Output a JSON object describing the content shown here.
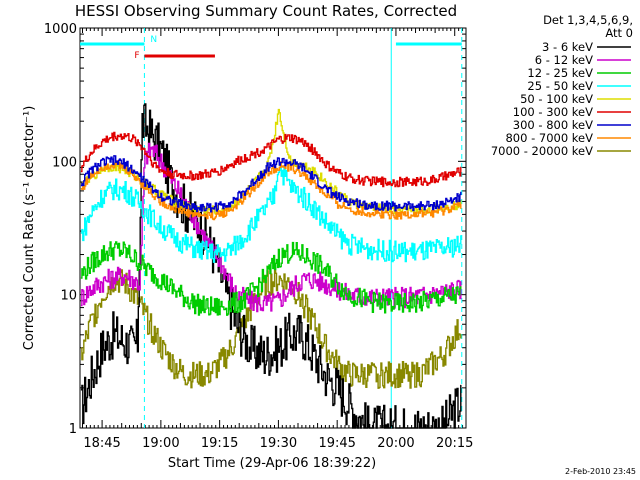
{
  "chart_data": {
    "type": "line",
    "title": "HESSI Observing Summary Count Rates, Corrected",
    "xlabel": "Start Time (29-Apr-06 18:39:22)",
    "ylabel": "Corrected Count Rate (s⁻¹ detector⁻¹)",
    "y_scale": "log",
    "ylim": [
      1,
      1000
    ],
    "xlim": [
      18.656,
      20.298
    ],
    "x_ticks": [
      {
        "value": 18.75,
        "label": "18:45"
      },
      {
        "value": 19.0,
        "label": "19:00"
      },
      {
        "value": 19.25,
        "label": "19:15"
      },
      {
        "value": 19.5,
        "label": "19:30"
      },
      {
        "value": 19.75,
        "label": "19:45"
      },
      {
        "value": 20.0,
        "label": "20:00"
      },
      {
        "value": 20.25,
        "label": "20:15"
      }
    ],
    "y_ticks": [
      {
        "value": 1,
        "label": "1"
      },
      {
        "value": 10,
        "label": "10"
      },
      {
        "value": 100,
        "label": "100"
      },
      {
        "value": 1000,
        "label": "1000"
      }
    ],
    "legend": {
      "position": "right",
      "header": [
        "Det 1,3,4,5,6,9,",
        "Att 0"
      ]
    },
    "series": [
      {
        "name": "3 - 6 keV",
        "color": "#000000",
        "points": [
          [
            18.66,
            1.4
          ],
          [
            18.7,
            2.3
          ],
          [
            18.75,
            4.0
          ],
          [
            18.8,
            5.0
          ],
          [
            18.85,
            4.4
          ],
          [
            18.88,
            4.0
          ],
          [
            18.9,
            4.5
          ],
          [
            18.92,
            195
          ],
          [
            18.95,
            170
          ],
          [
            19.0,
            120
          ],
          [
            19.05,
            65
          ],
          [
            19.1,
            45
          ],
          [
            19.15,
            35
          ],
          [
            19.2,
            26
          ],
          [
            19.25,
            15
          ],
          [
            19.28,
            10
          ],
          [
            19.32,
            6.0
          ],
          [
            19.38,
            4.0
          ],
          [
            19.44,
            3.5
          ],
          [
            19.5,
            4.0
          ],
          [
            19.55,
            5.0
          ],
          [
            19.6,
            5.0
          ],
          [
            19.65,
            3.5
          ],
          [
            19.7,
            2.5
          ],
          [
            19.75,
            2.0
          ],
          [
            19.8,
            1.5
          ],
          [
            19.88,
            1.0
          ],
          [
            19.92,
            1.0
          ],
          [
            20.0,
            1.0
          ],
          [
            20.1,
            1.0
          ],
          [
            20.2,
            1.0
          ],
          [
            20.24,
            1.3
          ],
          [
            20.28,
            1.6
          ]
        ]
      },
      {
        "name": "6 - 12 keV",
        "color": "#cc00cc",
        "points": [
          [
            18.66,
            9.5
          ],
          [
            18.7,
            11
          ],
          [
            18.75,
            12.5
          ],
          [
            18.8,
            13.5
          ],
          [
            18.85,
            14
          ],
          [
            18.88,
            13
          ],
          [
            18.91,
            12
          ],
          [
            18.93,
            105
          ],
          [
            18.96,
            125
          ],
          [
            19.0,
            100
          ],
          [
            19.05,
            70
          ],
          [
            19.1,
            50
          ],
          [
            19.15,
            35
          ],
          [
            19.2,
            24
          ],
          [
            19.25,
            18
          ],
          [
            19.28,
            14
          ],
          [
            19.32,
            10
          ],
          [
            19.38,
            9
          ],
          [
            19.44,
            8.5
          ],
          [
            19.5,
            9
          ],
          [
            19.55,
            11
          ],
          [
            19.6,
            13
          ],
          [
            19.65,
            13
          ],
          [
            19.7,
            12
          ],
          [
            19.75,
            11
          ],
          [
            19.8,
            10
          ],
          [
            19.88,
            9.5
          ],
          [
            20.0,
            9.5
          ],
          [
            20.1,
            9.8
          ],
          [
            20.2,
            10.5
          ],
          [
            20.28,
            11
          ]
        ]
      },
      {
        "name": "12 - 25 keV",
        "color": "#00cc00",
        "points": [
          [
            18.66,
            14
          ],
          [
            18.7,
            17
          ],
          [
            18.75,
            20
          ],
          [
            18.8,
            22
          ],
          [
            18.85,
            21
          ],
          [
            18.9,
            18
          ],
          [
            18.95,
            15
          ],
          [
            19.0,
            13
          ],
          [
            19.05,
            11
          ],
          [
            19.1,
            9.5
          ],
          [
            19.15,
            8.5
          ],
          [
            19.2,
            8
          ],
          [
            19.25,
            8
          ],
          [
            19.3,
            8.5
          ],
          [
            19.35,
            9
          ],
          [
            19.4,
            11
          ],
          [
            19.45,
            14
          ],
          [
            19.5,
            19
          ],
          [
            19.55,
            21
          ],
          [
            19.6,
            20
          ],
          [
            19.65,
            18
          ],
          [
            19.7,
            15
          ],
          [
            19.75,
            12
          ],
          [
            19.8,
            10
          ],
          [
            19.88,
            9
          ],
          [
            19.95,
            8.5
          ],
          [
            20.0,
            8.5
          ],
          [
            20.1,
            8.7
          ],
          [
            20.2,
            9.5
          ],
          [
            20.28,
            10
          ]
        ]
      },
      {
        "name": "25 - 50 keV",
        "color": "#00ffff",
        "points": [
          [
            18.66,
            28
          ],
          [
            18.7,
            40
          ],
          [
            18.75,
            55
          ],
          [
            18.8,
            62
          ],
          [
            18.85,
            60
          ],
          [
            18.9,
            50
          ],
          [
            18.95,
            40
          ],
          [
            19.0,
            32
          ],
          [
            19.05,
            27
          ],
          [
            19.1,
            24
          ],
          [
            19.15,
            22
          ],
          [
            19.2,
            21
          ],
          [
            19.25,
            20
          ],
          [
            19.3,
            22
          ],
          [
            19.35,
            27
          ],
          [
            19.4,
            35
          ],
          [
            19.45,
            45
          ],
          [
            19.48,
            55
          ],
          [
            19.5,
            95
          ],
          [
            19.52,
            80
          ],
          [
            19.55,
            65
          ],
          [
            19.6,
            55
          ],
          [
            19.65,
            45
          ],
          [
            19.7,
            35
          ],
          [
            19.75,
            28
          ],
          [
            19.8,
            24
          ],
          [
            19.88,
            22
          ],
          [
            20.0,
            21
          ],
          [
            20.1,
            21
          ],
          [
            20.2,
            22
          ],
          [
            20.28,
            24
          ]
        ]
      },
      {
        "name": "50 - 100 keV",
        "color": "#dddd00",
        "points": [
          [
            18.66,
            65
          ],
          [
            18.7,
            75
          ],
          [
            18.75,
            88
          ],
          [
            18.8,
            92
          ],
          [
            18.85,
            85
          ],
          [
            18.9,
            75
          ],
          [
            18.95,
            65
          ],
          [
            19.0,
            57
          ],
          [
            19.05,
            50
          ],
          [
            19.1,
            46
          ],
          [
            19.15,
            44
          ],
          [
            19.2,
            43
          ],
          [
            19.25,
            43
          ],
          [
            19.3,
            46
          ],
          [
            19.35,
            55
          ],
          [
            19.4,
            70
          ],
          [
            19.45,
            90
          ],
          [
            19.48,
            150
          ],
          [
            19.5,
            250
          ],
          [
            19.52,
            160
          ],
          [
            19.55,
            100
          ],
          [
            19.6,
            95
          ],
          [
            19.65,
            85
          ],
          [
            19.7,
            70
          ],
          [
            19.75,
            58
          ],
          [
            19.8,
            50
          ],
          [
            19.88,
            45
          ],
          [
            20.0,
            43
          ],
          [
            20.1,
            43
          ],
          [
            20.2,
            45
          ],
          [
            20.28,
            48
          ]
        ]
      },
      {
        "name": "100 - 300 keV",
        "color": "#e00000",
        "points": [
          [
            18.66,
            90
          ],
          [
            18.7,
            115
          ],
          [
            18.75,
            140
          ],
          [
            18.8,
            155
          ],
          [
            18.85,
            155
          ],
          [
            18.9,
            140
          ],
          [
            18.93,
            120
          ],
          [
            18.97,
            95
          ],
          [
            19.0,
            85
          ],
          [
            19.05,
            80
          ],
          [
            19.1,
            78
          ],
          [
            19.15,
            78
          ],
          [
            19.2,
            80
          ],
          [
            19.25,
            85
          ],
          [
            19.3,
            95
          ],
          [
            19.35,
            105
          ],
          [
            19.4,
            115
          ],
          [
            19.45,
            125
          ],
          [
            19.5,
            145
          ],
          [
            19.55,
            150
          ],
          [
            19.6,
            140
          ],
          [
            19.65,
            120
          ],
          [
            19.7,
            95
          ],
          [
            19.75,
            82
          ],
          [
            19.8,
            75
          ],
          [
            19.85,
            72
          ],
          [
            19.95,
            70
          ],
          [
            20.05,
            70
          ],
          [
            20.15,
            72
          ],
          [
            20.22,
            78
          ],
          [
            20.28,
            85
          ]
        ]
      },
      {
        "name": "300 - 800 keV",
        "color": "#0000cc",
        "points": [
          [
            18.66,
            68
          ],
          [
            18.7,
            85
          ],
          [
            18.75,
            98
          ],
          [
            18.8,
            102
          ],
          [
            18.85,
            95
          ],
          [
            18.9,
            80
          ],
          [
            18.95,
            65
          ],
          [
            19.0,
            55
          ],
          [
            19.05,
            50
          ],
          [
            19.1,
            47
          ],
          [
            19.15,
            45
          ],
          [
            19.2,
            45
          ],
          [
            19.25,
            46
          ],
          [
            19.3,
            50
          ],
          [
            19.35,
            58
          ],
          [
            19.4,
            72
          ],
          [
            19.45,
            90
          ],
          [
            19.5,
            100
          ],
          [
            19.55,
            98
          ],
          [
            19.6,
            90
          ],
          [
            19.65,
            75
          ],
          [
            19.7,
            62
          ],
          [
            19.75,
            54
          ],
          [
            19.8,
            50
          ],
          [
            19.88,
            47
          ],
          [
            20.0,
            46
          ],
          [
            20.1,
            46
          ],
          [
            20.2,
            48
          ],
          [
            20.28,
            55
          ]
        ]
      },
      {
        "name": "800 - 7000 keV",
        "color": "#ff8800",
        "points": [
          [
            18.66,
            62
          ],
          [
            18.7,
            78
          ],
          [
            18.75,
            92
          ],
          [
            18.8,
            96
          ],
          [
            18.85,
            88
          ],
          [
            18.9,
            74
          ],
          [
            18.95,
            60
          ],
          [
            19.0,
            50
          ],
          [
            19.05,
            45
          ],
          [
            19.1,
            42
          ],
          [
            19.15,
            40
          ],
          [
            19.2,
            39
          ],
          [
            19.25,
            40
          ],
          [
            19.3,
            44
          ],
          [
            19.35,
            52
          ],
          [
            19.4,
            65
          ],
          [
            19.45,
            82
          ],
          [
            19.5,
            92
          ],
          [
            19.55,
            90
          ],
          [
            19.6,
            82
          ],
          [
            19.65,
            68
          ],
          [
            19.7,
            56
          ],
          [
            19.75,
            48
          ],
          [
            19.8,
            44
          ],
          [
            19.88,
            41
          ],
          [
            20.0,
            40
          ],
          [
            20.1,
            40
          ],
          [
            20.2,
            42
          ],
          [
            20.28,
            48
          ]
        ]
      },
      {
        "name": "7000 - 20000 keV",
        "color": "#888800",
        "points": [
          [
            18.66,
            3.5
          ],
          [
            18.7,
            6
          ],
          [
            18.75,
            10
          ],
          [
            18.8,
            13
          ],
          [
            18.85,
            12
          ],
          [
            18.9,
            9
          ],
          [
            18.95,
            6
          ],
          [
            19.0,
            4
          ],
          [
            19.05,
            3
          ],
          [
            19.1,
            2.5
          ],
          [
            19.15,
            2.5
          ],
          [
            19.2,
            2.5
          ],
          [
            19.25,
            3
          ],
          [
            19.3,
            4
          ],
          [
            19.35,
            6
          ],
          [
            19.4,
            9
          ],
          [
            19.45,
            12
          ],
          [
            19.5,
            13
          ],
          [
            19.55,
            12
          ],
          [
            19.6,
            9
          ],
          [
            19.65,
            6
          ],
          [
            19.7,
            4
          ],
          [
            19.75,
            3
          ],
          [
            19.8,
            2.5
          ],
          [
            19.88,
            2.5
          ],
          [
            20.0,
            2.5
          ],
          [
            20.1,
            2.5
          ],
          [
            20.2,
            3.5
          ],
          [
            20.28,
            6
          ]
        ]
      }
    ],
    "flags": [
      {
        "name": "night",
        "color": "#00ffff",
        "label": "N",
        "x_ranges": [
          [
            18.656,
            18.93
          ],
          [
            20.0,
            20.28
          ]
        ],
        "level": 0.96
      },
      {
        "name": "flare",
        "color": "#e00000",
        "label": "F",
        "x_ranges": [
          [
            18.93,
            19.23
          ]
        ],
        "level": 0.93
      }
    ],
    "vlines": [
      {
        "x": 18.93,
        "color": "#00ffff",
        "style": "dashed"
      },
      {
        "x": 19.98,
        "color": "#00ffff",
        "style": "solid"
      },
      {
        "x": 20.28,
        "color": "#00ffff",
        "style": "dashed"
      }
    ]
  },
  "footer": {
    "timestamp": "2-Feb-2010 23:45"
  }
}
